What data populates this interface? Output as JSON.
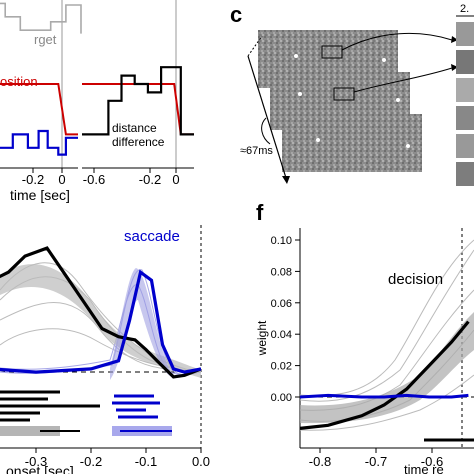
{
  "panel_c": {
    "label": "c",
    "time_annotation": "≈67ms",
    "scale_label": "2."
  },
  "panel_f": {
    "label": "f"
  },
  "chart_data": [
    {
      "type": "line",
      "panel": "top-left",
      "xlabel": "time [sec]",
      "x_ticks": [
        "-0.2",
        "0"
      ],
      "annotations": [
        "rget",
        "osition"
      ],
      "series": [
        {
          "color": "#aaaaaa",
          "x": [
            -0.5,
            -0.4,
            -0.4,
            -0.3,
            -0.3,
            -0.1,
            -0.1,
            0.0,
            0.0,
            0.1,
            0.1
          ],
          "y": [
            0.98,
            0.98,
            0.9,
            0.9,
            0.82,
            0.82,
            0.87,
            0.87,
            0.97,
            0.97,
            0.8
          ]
        },
        {
          "color": "#cc0000",
          "x": [
            -0.5,
            -0.05,
            0.0,
            0.08
          ],
          "y": [
            0.5,
            0.5,
            0.2,
            0.2
          ]
        },
        {
          "color": "#0000cc",
          "x": [
            -0.5,
            -0.45,
            -0.45,
            -0.35,
            -0.35,
            -0.25,
            -0.25,
            -0.18,
            -0.18,
            -0.12,
            -0.12,
            -0.05,
            -0.05,
            0.0,
            0.0,
            0.08
          ],
          "y": [
            0.2,
            0.2,
            0.12,
            0.12,
            0.2,
            0.2,
            0.12,
            0.12,
            0.22,
            0.22,
            0.12,
            0.12,
            0.08,
            0.08,
            0.18,
            0.18
          ]
        }
      ]
    },
    {
      "type": "line",
      "panel": "top-middle",
      "x_ticks": [
        "-0.6",
        "-0.2",
        "0"
      ],
      "annotations": [
        "distance",
        "difference"
      ],
      "series": [
        {
          "color": "#cc0000",
          "x": [
            -0.75,
            -0.05,
            0.0,
            0.1
          ],
          "y": [
            0.5,
            0.5,
            0.2,
            0.2
          ]
        },
        {
          "color": "#000000",
          "x": [
            -0.75,
            -0.55,
            -0.55,
            -0.45,
            -0.45,
            -0.35,
            -0.35,
            -0.25,
            -0.25,
            -0.15,
            -0.15,
            -0.05,
            -0.05,
            0.0,
            0.0,
            0.1
          ],
          "y": [
            0.2,
            0.2,
            0.4,
            0.4,
            0.55,
            0.55,
            0.5,
            0.5,
            0.45,
            0.45,
            0.6,
            0.6,
            0.6,
            0.6,
            0.2,
            0.2
          ]
        }
      ]
    },
    {
      "type": "line",
      "panel": "bottom-left",
      "xlabel": "onset [sec]",
      "x_ticks": [
        "-0.3",
        "-0.2",
        "-0.1",
        "0.0"
      ],
      "annotations": [
        "saccade"
      ],
      "xlim": [
        -0.38,
        0.0
      ],
      "series": [
        {
          "color": "#000000",
          "x": [
            -0.38,
            -0.35,
            -0.32,
            -0.28,
            -0.25,
            -0.22,
            -0.2,
            -0.18,
            -0.15,
            -0.12,
            -0.1,
            -0.08,
            -0.05,
            -0.03,
            0.0
          ],
          "y": [
            0.055,
            0.06,
            0.07,
            0.075,
            0.06,
            0.045,
            0.035,
            0.025,
            0.02,
            0.018,
            0.012,
            0.005,
            -0.005,
            -0.004,
            0.0
          ]
        },
        {
          "color": "#0000cc",
          "x": [
            -0.38,
            -0.3,
            -0.2,
            -0.15,
            -0.13,
            -0.11,
            -0.09,
            -0.07,
            -0.05,
            -0.03,
            0.0
          ],
          "y": [
            0.0,
            -0.002,
            0.0,
            0.005,
            0.03,
            0.06,
            0.055,
            0.015,
            0.0,
            -0.002,
            0.0
          ]
        }
      ]
    },
    {
      "type": "line",
      "panel": "bottom-right",
      "xlabel": "time re",
      "ylabel": "weight",
      "y_ticks": [
        "0.00",
        "0.02",
        "0.04",
        "0.06",
        "0.08",
        "0.10"
      ],
      "x_ticks": [
        "-0.8",
        "-0.7",
        "-0.6"
      ],
      "annotations": [
        "decision"
      ],
      "xlim": [
        -0.83,
        -0.52
      ],
      "ylim": [
        -0.04,
        0.11
      ],
      "series": [
        {
          "color": "#000000",
          "x": [
            -0.83,
            -0.78,
            -0.72,
            -0.68,
            -0.64,
            -0.6,
            -0.56,
            -0.53
          ],
          "y": [
            -0.02,
            -0.018,
            -0.012,
            -0.005,
            0.005,
            0.02,
            0.035,
            0.048
          ]
        },
        {
          "color": "#0000cc",
          "x": [
            -0.83,
            -0.78,
            -0.72,
            -0.68,
            -0.64,
            -0.6,
            -0.56,
            -0.53
          ],
          "y": [
            0.0,
            0.001,
            0.0,
            0.0,
            0.001,
            0.0,
            0.0,
            0.001
          ]
        }
      ]
    }
  ]
}
